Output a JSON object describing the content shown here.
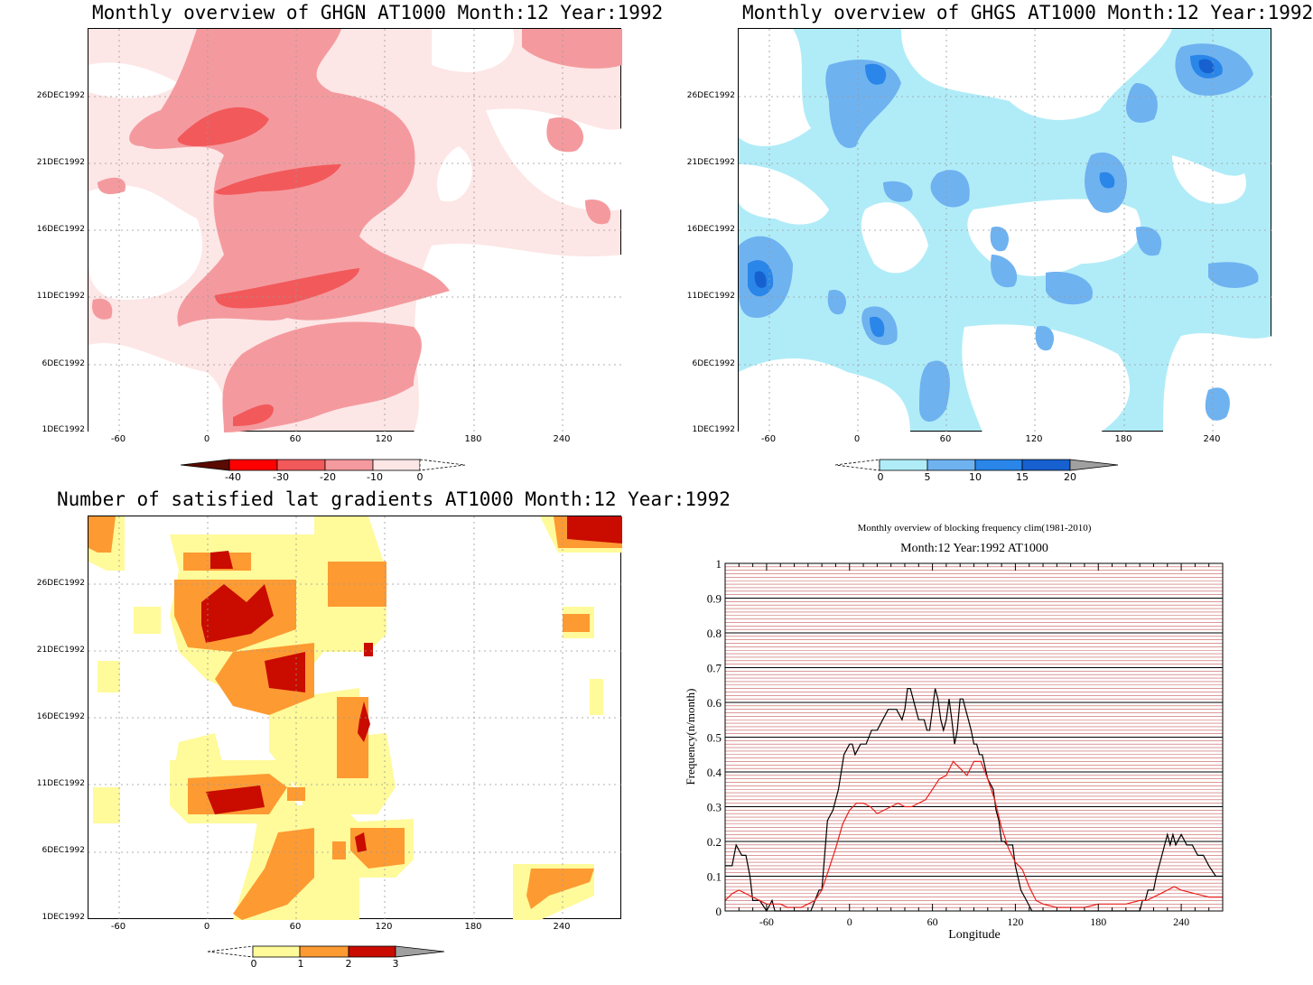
{
  "panels": {
    "ghgn": {
      "title": "Monthly overview of GHGN AT1000 Month:12 Year:1992",
      "y_ticks": [
        "26DEC1992",
        "21DEC1992",
        "16DEC1992",
        "11DEC1992",
        "6DEC1992",
        "1DEC1992"
      ],
      "x_ticks": [
        "-60",
        "0",
        "60",
        "120",
        "180",
        "240"
      ],
      "colorbar": {
        "labels": [
          "-40",
          "-30",
          "-20",
          "-10",
          "0"
        ],
        "colors": [
          "#5a0a00",
          "#ff0000",
          "#f2595b",
          "#f49a9e",
          "#fde6e6"
        ]
      }
    },
    "ghgs": {
      "title": "Monthly overview of GHGS AT1000 Month:12 Year:1992",
      "y_ticks": [
        "26DEC1992",
        "21DEC1992",
        "16DEC1992",
        "11DEC1992",
        "6DEC1992",
        "1DEC1992"
      ],
      "x_ticks": [
        "-60",
        "0",
        "60",
        "120",
        "180",
        "240"
      ],
      "colorbar": {
        "labels": [
          "0",
          "5",
          "10",
          "15",
          "20"
        ],
        "colors": [
          "#b0ecf8",
          "#6fb2f0",
          "#2a86e8",
          "#1660d0",
          "#a0a0a0"
        ]
      }
    },
    "gradients": {
      "title": "Number of satisfied lat gradients AT1000 Month:12 Year:1992",
      "y_ticks": [
        "26DEC1992",
        "21DEC1992",
        "16DEC1992",
        "11DEC1992",
        "6DEC1992",
        "1DEC1992"
      ],
      "x_ticks": [
        "-60",
        "0",
        "60",
        "120",
        "180",
        "240"
      ],
      "colorbar": {
        "labels": [
          "0",
          "1",
          "2",
          "3"
        ],
        "colors": [
          "#fffa9a",
          "#fd9a32",
          "#c90b00",
          "#a0a0a0"
        ]
      }
    }
  },
  "colors": {
    "ghgn": [
      "#fde6e6",
      "#f49a9e",
      "#f2595b"
    ],
    "ghgs": [
      "#b0ecf8",
      "#6fb2f0",
      "#2a86e8",
      "#1660d0"
    ],
    "grad": [
      "#fffa9a",
      "#fd9a32",
      "#c90b00"
    ],
    "freq_black": "#000000",
    "freq_red": "#e8201c",
    "freq_grid": "#c85a5a"
  },
  "chart_data": {
    "type": "line",
    "title": "Monthly overview of blocking frequency clim(1981-2010)",
    "subtitle": "Month:12 Year:1992  AT1000",
    "xlabel": "Longitude",
    "ylabel": "Frequency(n/month)",
    "xlim": [
      -90,
      270
    ],
    "ylim": [
      0,
      1
    ],
    "x_ticks": [
      "-60",
      "0",
      "60",
      "120",
      "180",
      "240"
    ],
    "y_ticks": [
      "0",
      "0.1",
      "0.2",
      "0.3",
      "0.4",
      "0.5",
      "0.6",
      "0.7",
      "0.8",
      "0.9",
      "1"
    ],
    "series": [
      {
        "x": [
          -90,
          -85,
          -82,
          -78,
          -75,
          -72,
          -70,
          -65,
          -60,
          -56,
          -54,
          -50,
          -46,
          -44,
          -40,
          -35,
          -30,
          -28,
          -25,
          -22,
          -20,
          -16,
          -12,
          -8,
          -4,
          0,
          2,
          4,
          8,
          12,
          16,
          20,
          24,
          28,
          32,
          34,
          38,
          40,
          42,
          44,
          46,
          48,
          50,
          54,
          56,
          58,
          60,
          62,
          64,
          66,
          68,
          70,
          72,
          74,
          76,
          78,
          80,
          82,
          84,
          86,
          88,
          90,
          92,
          94,
          96,
          100,
          104,
          106,
          108,
          110,
          112,
          114,
          116,
          118,
          120,
          124,
          128,
          132,
          136,
          140,
          150,
          160,
          170,
          180,
          190,
          200,
          205,
          210,
          212,
          214,
          216,
          218,
          220,
          222,
          224,
          226,
          228,
          230,
          232,
          234,
          236,
          240,
          244,
          248,
          252,
          256,
          260,
          265,
          270
        ],
        "y": [
          0.13,
          0.13,
          0.19,
          0.16,
          0.16,
          0.1,
          0.03,
          0.03,
          0.0,
          0.03,
          0.0,
          0.0,
          0.0,
          0.0,
          0.0,
          0.0,
          0.0,
          0.0,
          0.03,
          0.06,
          0.06,
          0.26,
          0.29,
          0.35,
          0.45,
          0.48,
          0.48,
          0.45,
          0.48,
          0.48,
          0.52,
          0.52,
          0.55,
          0.58,
          0.58,
          0.58,
          0.55,
          0.58,
          0.64,
          0.64,
          0.61,
          0.58,
          0.55,
          0.55,
          0.52,
          0.52,
          0.58,
          0.64,
          0.61,
          0.55,
          0.52,
          0.55,
          0.61,
          0.55,
          0.48,
          0.52,
          0.61,
          0.61,
          0.58,
          0.55,
          0.52,
          0.48,
          0.48,
          0.45,
          0.45,
          0.38,
          0.35,
          0.29,
          0.26,
          0.2,
          0.2,
          0.19,
          0.19,
          0.19,
          0.13,
          0.06,
          0.03,
          0.0,
          0.0,
          0.0,
          0.0,
          0.0,
          0.0,
          0.0,
          0.0,
          0.0,
          0.0,
          0.0,
          0.03,
          0.03,
          0.06,
          0.06,
          0.06,
          0.1,
          0.13,
          0.16,
          0.19,
          0.22,
          0.19,
          0.22,
          0.19,
          0.22,
          0.19,
          0.19,
          0.16,
          0.16,
          0.13,
          0.1,
          0.1
        ]
      },
      {
        "x": [
          -90,
          -85,
          -80,
          -75,
          -70,
          -65,
          -60,
          -55,
          -50,
          -45,
          -40,
          -35,
          -30,
          -25,
          -20,
          -15,
          -10,
          -5,
          0,
          5,
          10,
          15,
          20,
          25,
          30,
          35,
          40,
          45,
          50,
          55,
          60,
          65,
          70,
          75,
          80,
          85,
          90,
          95,
          100,
          105,
          110,
          115,
          120,
          125,
          130,
          135,
          140,
          150,
          160,
          170,
          180,
          190,
          200,
          210,
          215,
          220,
          225,
          230,
          235,
          240,
          250,
          260,
          270
        ],
        "y": [
          0.03,
          0.05,
          0.06,
          0.05,
          0.04,
          0.03,
          0.02,
          0.02,
          0.02,
          0.01,
          0.01,
          0.01,
          0.02,
          0.03,
          0.06,
          0.12,
          0.18,
          0.25,
          0.29,
          0.31,
          0.31,
          0.3,
          0.28,
          0.29,
          0.3,
          0.31,
          0.3,
          0.3,
          0.31,
          0.32,
          0.35,
          0.38,
          0.39,
          0.43,
          0.41,
          0.39,
          0.43,
          0.43,
          0.38,
          0.32,
          0.24,
          0.18,
          0.14,
          0.12,
          0.07,
          0.03,
          0.02,
          0.01,
          0.01,
          0.01,
          0.02,
          0.02,
          0.02,
          0.03,
          0.03,
          0.04,
          0.05,
          0.06,
          0.07,
          0.06,
          0.05,
          0.04,
          0.04
        ]
      }
    ]
  }
}
